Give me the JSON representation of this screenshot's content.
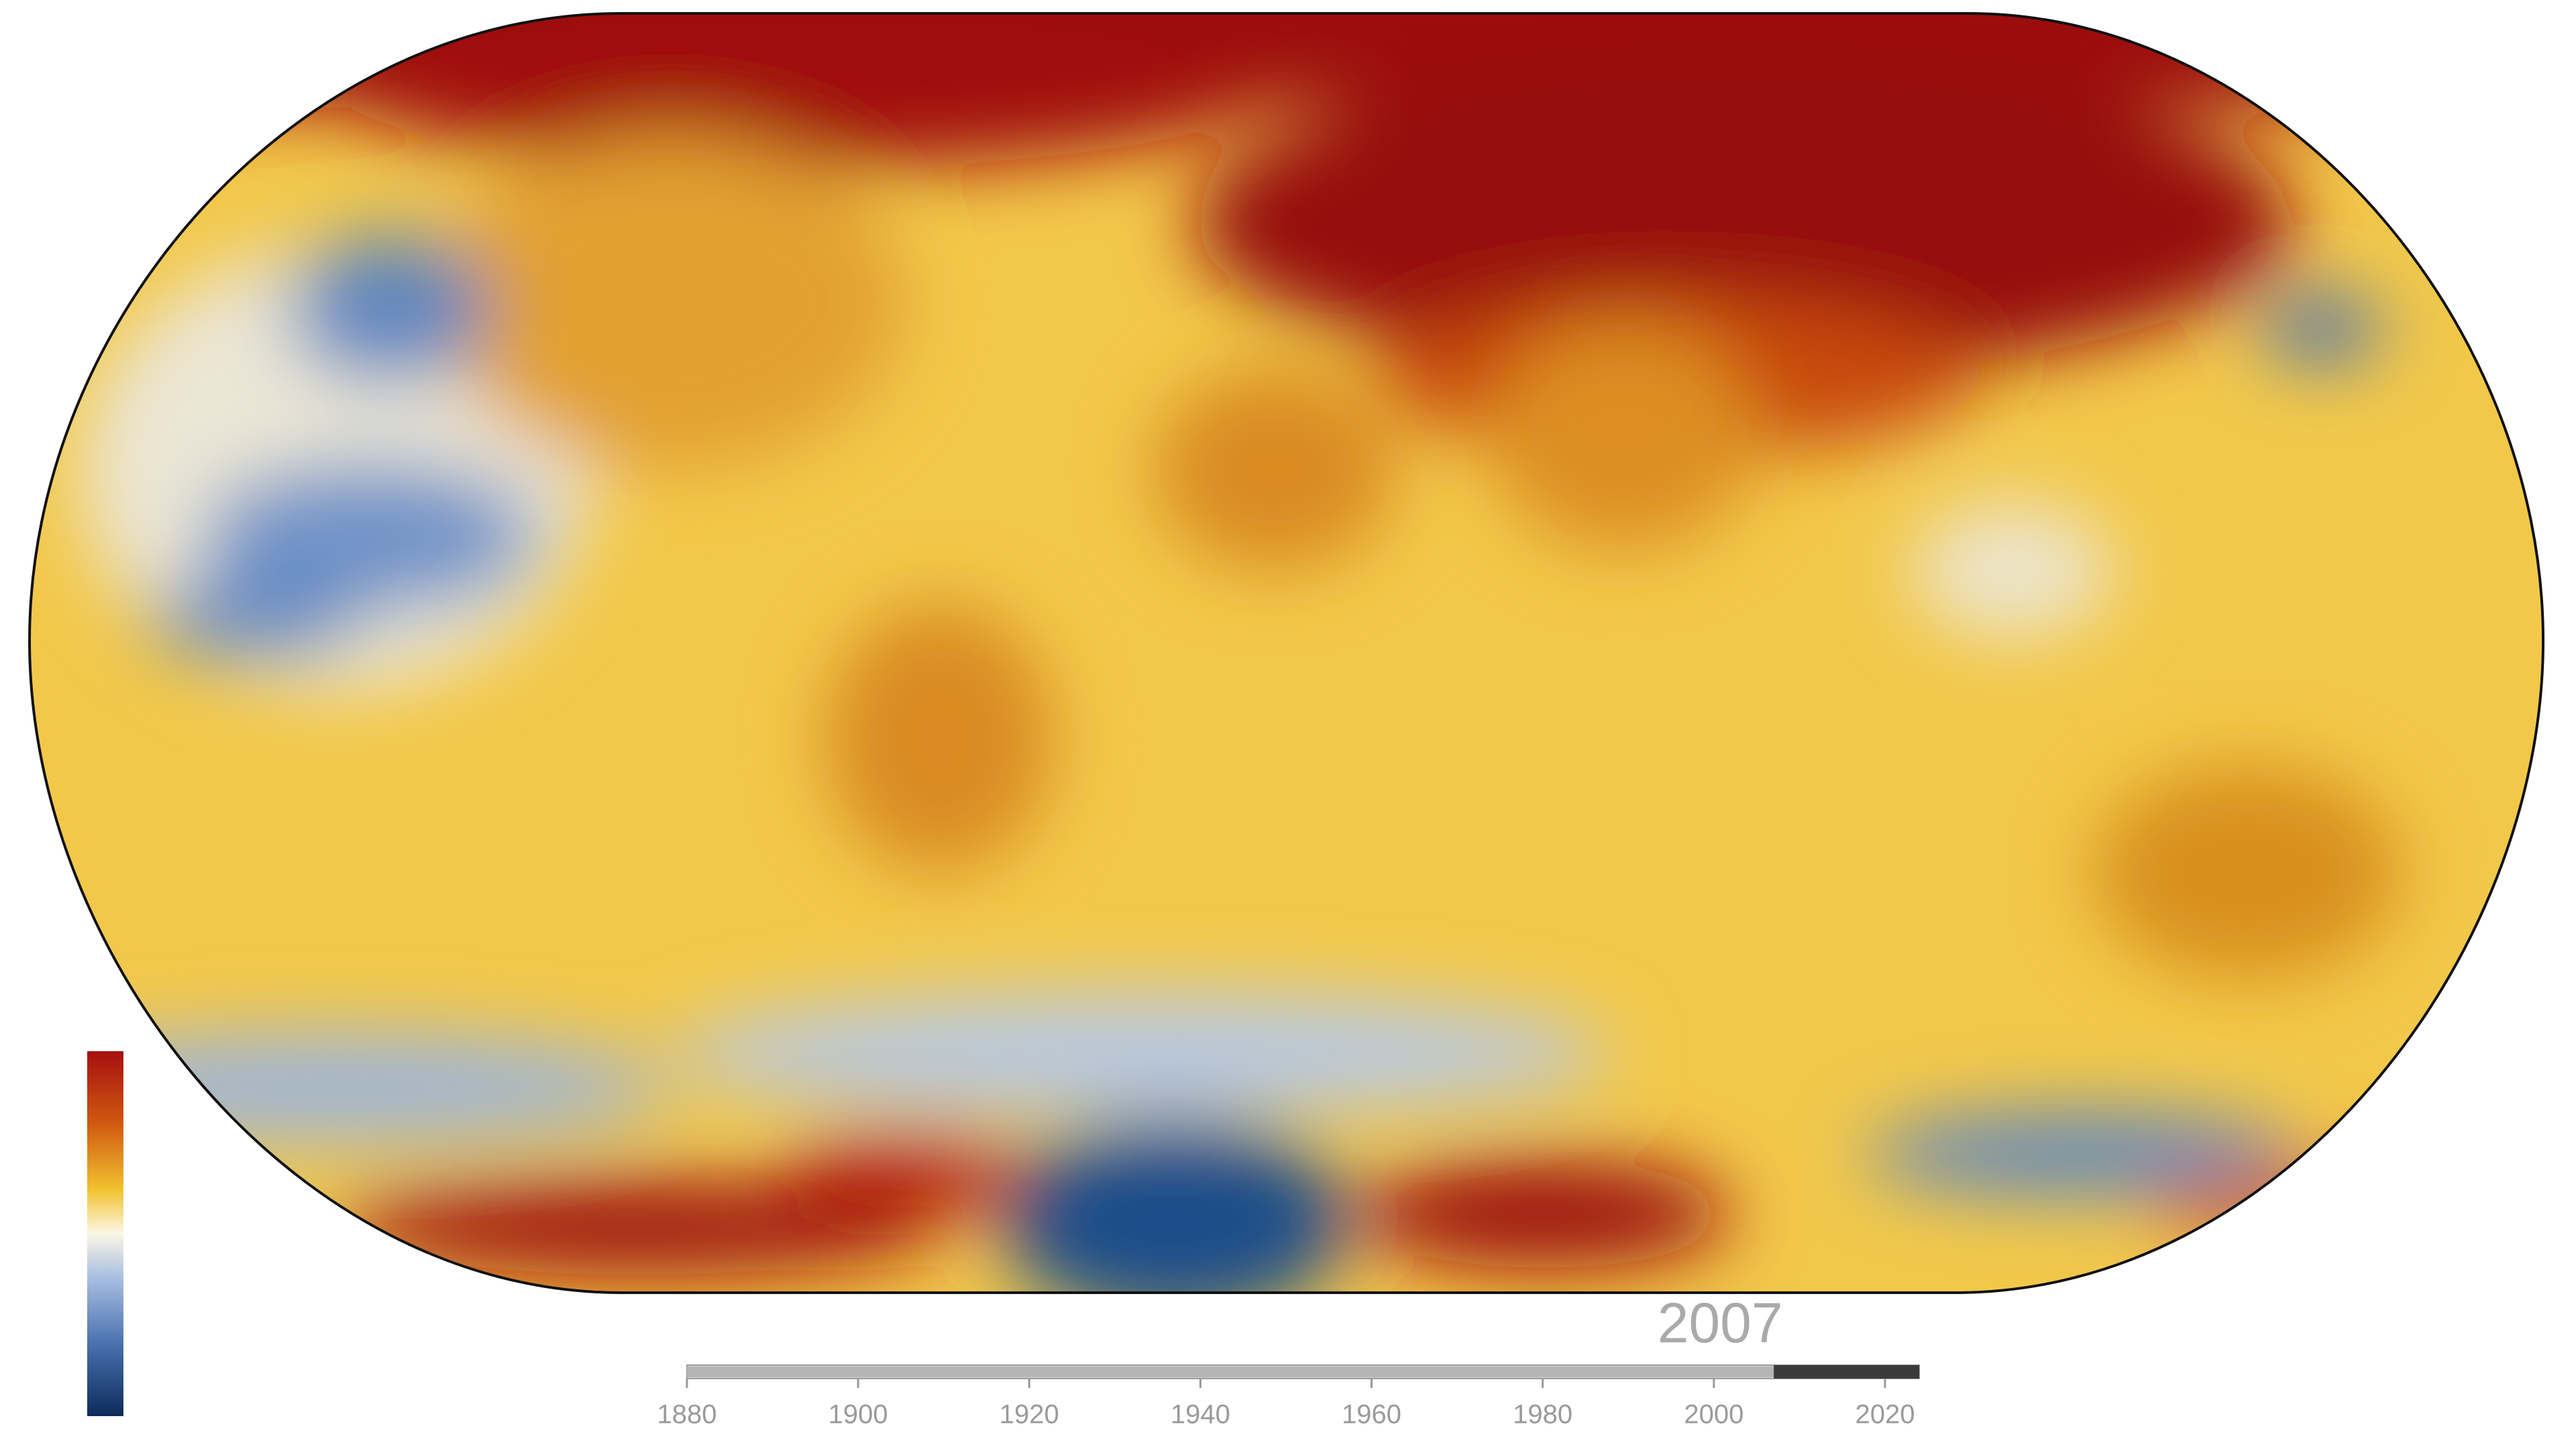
{
  "timeline": {
    "current_year": 2007,
    "range": [
      1880,
      2024
    ],
    "ticks": [
      1880,
      1900,
      1920,
      1940,
      1960,
      1980,
      2000,
      2020
    ]
  }
}
